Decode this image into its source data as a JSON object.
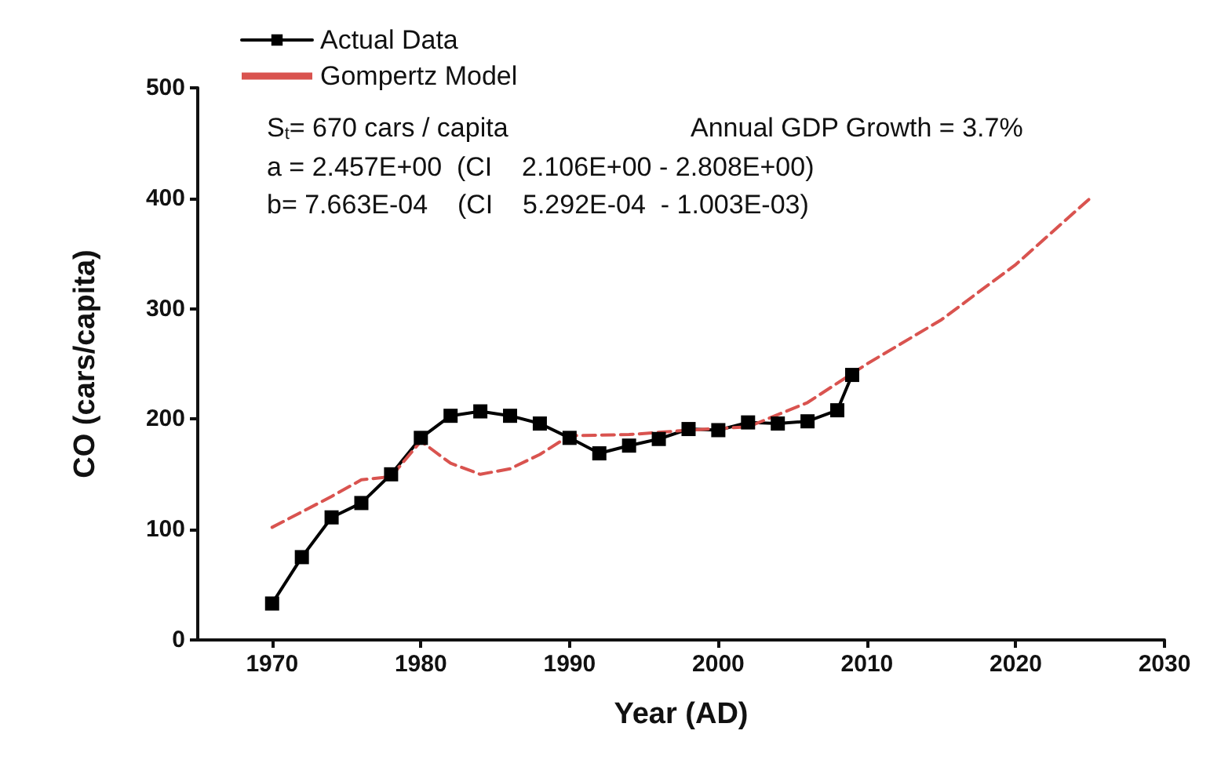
{
  "chart_data": {
    "type": "line",
    "xlabel": "Year (AD)",
    "ylabel": "CO (cars/capita)",
    "xlim": [
      1965,
      2030
    ],
    "xticks": [
      1970,
      1980,
      1990,
      2000,
      2010,
      2020,
      2030
    ],
    "ylim": [
      0,
      500
    ],
    "yticks": [
      0,
      100,
      200,
      300,
      400,
      500
    ],
    "grid": false,
    "legend": "top left",
    "series": [
      {
        "name": "Actual Data",
        "color": "#000000",
        "marker": "square",
        "line_style": "solid",
        "x": [
          1970,
          1972,
          1974,
          1976,
          1978,
          1980,
          1982,
          1984,
          1986,
          1988,
          1990,
          1992,
          1994,
          1996,
          1998,
          2000,
          2002,
          2004,
          2006,
          2008,
          2009
        ],
        "values": [
          33,
          75,
          111,
          124,
          150,
          183,
          203,
          207,
          203,
          196,
          183,
          169,
          176,
          182,
          191,
          190,
          197,
          196,
          198,
          208,
          240
        ]
      },
      {
        "name": "Gompertz Model",
        "color": "#d9534f",
        "marker": "none",
        "line_style": "dashed",
        "x": [
          1970,
          1974,
          1976,
          1978,
          1980,
          1982,
          1984,
          1986,
          1988,
          1990,
          1994,
          1998,
          2002,
          2006,
          2010,
          2015,
          2020,
          2025
        ],
        "values": [
          102,
          130,
          145,
          148,
          180,
          160,
          150,
          155,
          168,
          185,
          186,
          190,
          193,
          215,
          250,
          290,
          340,
          400
        ]
      }
    ],
    "annotations": [
      "S$_{t}$= 670 cars / capita",
      "Annual GDP Growth = 3.7%",
      "a = 2.457E+00  (CI    2.106E+00 - 2.808E+00)",
      "b= 7.663E-04    (CI    5.292E-04  - 1.003E-03)"
    ]
  }
}
